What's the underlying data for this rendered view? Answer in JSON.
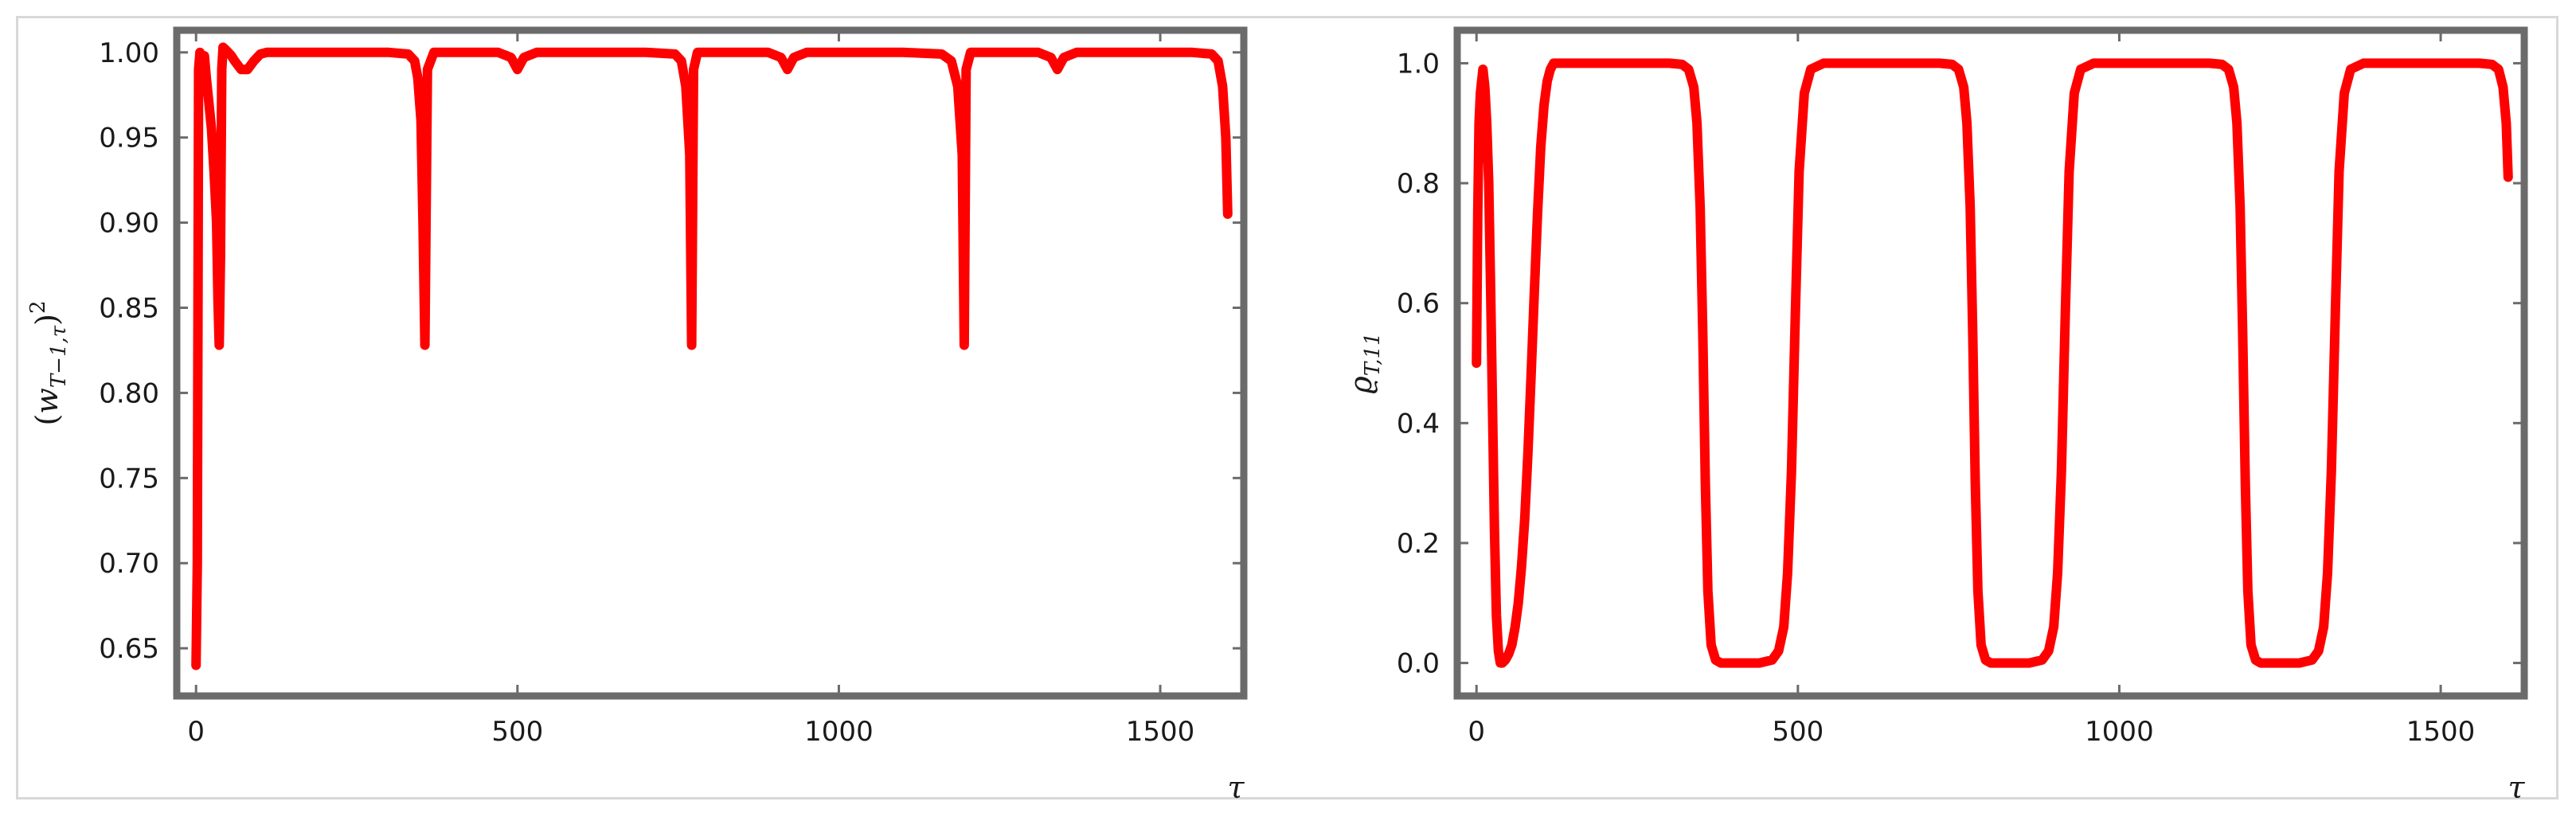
{
  "chart_data": [
    {
      "type": "line",
      "xlabel": "τ",
      "ylabel_parts": {
        "open": "(",
        "w": "w",
        "sub": "T−1,τ",
        "close": ")",
        "sup": "2"
      },
      "xlim": [
        -30,
        1630
      ],
      "ylim": [
        0.622,
        1.013
      ],
      "xticks": [
        0,
        500,
        1000,
        1500
      ],
      "yticks": [
        0.65,
        0.7,
        0.75,
        0.8,
        0.85,
        0.9,
        0.95,
        1.0
      ],
      "ytick_labels": [
        "0.65",
        "0.70",
        "0.75",
        "0.80",
        "0.85",
        "0.90",
        "0.95",
        "1.00"
      ],
      "xtick_labels": [
        "0",
        "500",
        "1000",
        "1500"
      ],
      "line_color": "#ff0000",
      "series": [
        {
          "x": [
            0,
            2,
            4,
            6,
            8,
            10,
            13,
            16,
            20,
            24,
            28,
            32,
            34,
            36,
            38,
            40,
            42,
            45,
            50,
            55,
            60,
            70,
            80,
            90,
            100,
            110,
            130,
            200,
            300,
            330,
            340,
            345,
            350,
            353,
            356,
            360,
            370,
            400,
            470,
            490,
            500,
            510,
            530,
            600,
            700,
            745,
            755,
            762,
            768,
            771,
            774,
            780,
            790,
            820,
            890,
            910,
            920,
            930,
            950,
            1000,
            1100,
            1160,
            1175,
            1185,
            1192,
            1195,
            1198,
            1205,
            1215,
            1245,
            1310,
            1330,
            1340,
            1350,
            1370,
            1450,
            1550,
            1580,
            1590,
            1597,
            1602,
            1605
          ],
          "y": [
            0.64,
            0.7,
            0.99,
            1.0,
            0.998,
            0.99,
            0.998,
            0.985,
            0.97,
            0.955,
            0.93,
            0.9,
            0.855,
            0.828,
            0.88,
            0.99,
            1.003,
            1.002,
            1.0,
            0.998,
            0.995,
            0.99,
            0.99,
            0.995,
            0.999,
            1.0,
            1.0,
            1.0,
            1.0,
            0.999,
            0.995,
            0.985,
            0.96,
            0.9,
            0.828,
            0.99,
            1.0,
            1.0,
            1.0,
            0.997,
            0.99,
            0.997,
            1.0,
            1.0,
            1.0,
            0.999,
            0.995,
            0.98,
            0.94,
            0.828,
            0.99,
            1.0,
            1.0,
            1.0,
            1.0,
            0.997,
            0.99,
            0.997,
            1.0,
            1.0,
            1.0,
            0.999,
            0.995,
            0.98,
            0.94,
            0.828,
            0.99,
            1.0,
            1.0,
            1.0,
            1.0,
            0.997,
            0.99,
            0.997,
            1.0,
            1.0,
            1.0,
            0.999,
            0.995,
            0.98,
            0.95,
            0.905
          ]
        }
      ]
    },
    {
      "type": "line",
      "xlabel": "τ",
      "ylabel_parts": {
        "rho": "ϱ",
        "sub": "T,11"
      },
      "xlim": [
        -30,
        1630
      ],
      "ylim": [
        -0.055,
        1.055
      ],
      "xticks": [
        0,
        500,
        1000,
        1500
      ],
      "yticks": [
        0.0,
        0.2,
        0.4,
        0.6,
        0.8,
        1.0
      ],
      "ytick_labels": [
        "0.0",
        "0.2",
        "0.4",
        "0.6",
        "0.8",
        "1.0"
      ],
      "xtick_labels": [
        "0",
        "500",
        "1000",
        "1500"
      ],
      "line_color": "#ff0000",
      "series": [
        {
          "x": [
            0,
            2,
            4,
            6,
            8,
            10,
            13,
            16,
            19,
            22,
            25,
            28,
            31,
            34,
            37,
            40,
            45,
            50,
            55,
            60,
            65,
            70,
            75,
            80,
            85,
            90,
            95,
            100,
            105,
            110,
            115,
            120,
            130,
            150,
            300,
            320,
            330,
            338,
            343,
            348,
            352,
            356,
            360,
            365,
            372,
            380,
            400,
            440,
            460,
            470,
            478,
            484,
            490,
            496,
            502,
            510,
            520,
            540,
            720,
            740,
            750,
            758,
            763,
            768,
            772,
            776,
            780,
            785,
            792,
            800,
            820,
            860,
            880,
            890,
            898,
            904,
            910,
            916,
            922,
            930,
            940,
            960,
            1140,
            1160,
            1170,
            1178,
            1183,
            1188,
            1192,
            1196,
            1200,
            1205,
            1212,
            1220,
            1240,
            1280,
            1300,
            1310,
            1318,
            1324,
            1330,
            1336,
            1342,
            1350,
            1360,
            1380,
            1560,
            1580,
            1590,
            1597,
            1602,
            1605
          ],
          "y": [
            0.5,
            0.75,
            0.9,
            0.95,
            0.97,
            0.99,
            0.96,
            0.9,
            0.8,
            0.62,
            0.42,
            0.22,
            0.08,
            0.02,
            0.0,
            0.0,
            0.005,
            0.015,
            0.03,
            0.06,
            0.1,
            0.16,
            0.24,
            0.35,
            0.48,
            0.62,
            0.75,
            0.86,
            0.93,
            0.97,
            0.99,
            1.0,
            1.0,
            1.0,
            1.0,
            0.998,
            0.99,
            0.96,
            0.9,
            0.76,
            0.55,
            0.3,
            0.12,
            0.03,
            0.005,
            0.0,
            0.0,
            0.0,
            0.005,
            0.02,
            0.06,
            0.15,
            0.32,
            0.58,
            0.82,
            0.95,
            0.99,
            1.0,
            1.0,
            0.998,
            0.99,
            0.96,
            0.9,
            0.76,
            0.55,
            0.3,
            0.12,
            0.03,
            0.005,
            0.0,
            0.0,
            0.0,
            0.005,
            0.02,
            0.06,
            0.15,
            0.32,
            0.58,
            0.82,
            0.95,
            0.99,
            1.0,
            1.0,
            0.998,
            0.99,
            0.96,
            0.9,
            0.76,
            0.55,
            0.3,
            0.12,
            0.03,
            0.005,
            0.0,
            0.0,
            0.0,
            0.005,
            0.02,
            0.06,
            0.15,
            0.32,
            0.58,
            0.82,
            0.95,
            0.99,
            1.0,
            1.0,
            0.998,
            0.99,
            0.96,
            0.9,
            0.81
          ]
        }
      ]
    }
  ]
}
